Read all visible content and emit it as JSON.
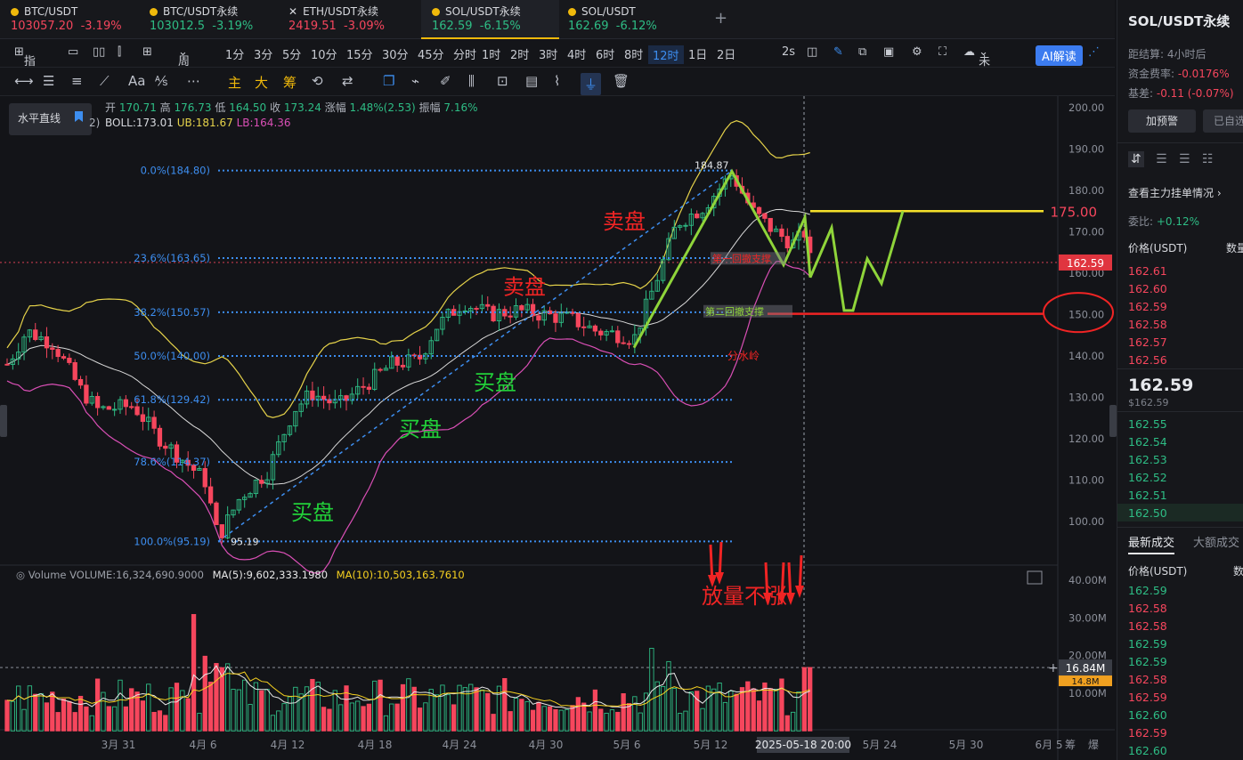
{
  "tabs": [
    {
      "name": "BTC/USDT",
      "price": "103057.20",
      "change": "-3.19%",
      "icon": "bitcoin-icon",
      "dir": "neg"
    },
    {
      "name": "BTC/USDT永续",
      "price": "103012.5",
      "change": "-3.19%",
      "icon": "bitcoin-icon",
      "dir": "pos"
    },
    {
      "name": "ETH/USDT永续",
      "price": "2419.51",
      "change": "-3.09%",
      "icon": "close-icon",
      "dir": "neg"
    },
    {
      "name": "SOL/USDT永续",
      "price": "162.59",
      "change": "-6.15%",
      "icon": "binance-icon",
      "dir": "pos"
    },
    {
      "name": "SOL/USDT",
      "price": "162.69",
      "change": "-6.12%",
      "icon": "sol-icon",
      "dir": "pos"
    }
  ],
  "toolbar": {
    "indicator": "指标",
    "period": "周期",
    "intervals": [
      "1分",
      "3分",
      "5分",
      "10分",
      "15分",
      "30分",
      "45分",
      "分时",
      "1时",
      "2时",
      "3时",
      "4时",
      "6时",
      "8时",
      "12时",
      "1日",
      "2日"
    ],
    "selected": "12时",
    "speed": "2s",
    "layout_name": "未命名",
    "ai": "AI解读"
  },
  "drawtools": {
    "text_tool": "Aa",
    "main": "主",
    "big": "大",
    "chip": "筹"
  },
  "tooltip": {
    "label": "水平直线"
  },
  "ohlc": {
    "open_l": "开",
    "open": "170.71",
    "high_l": "高",
    "high": "176.73",
    "low_l": "低",
    "low": "164.50",
    "close_l": "收",
    "close": "173.24",
    "chg_l": "涨幅",
    "chg": "1.48%(2.53)",
    "amp_l": "振幅",
    "amp": "7.16%"
  },
  "boll": {
    "label": "BOLL:173.01",
    "ub": "UB:181.67",
    "lb": "LB:164.36",
    "prefix": "2)"
  },
  "volume": {
    "label": "Volume",
    "vol": "VOLUME:16,324,690.9000",
    "ma5": "MA(5):9,602,333.1980",
    "ma10": "MA(10):10,503,163.7610"
  },
  "right": {
    "title": "SOL/USDT永续",
    "settle_l": "距结算:",
    "settle": "4小时后",
    "fund_l": "资金费率:",
    "fund": "-0.0176%",
    "basis_l": "基差:",
    "basis": "-0.11 (-0.07%)",
    "alert": "加预警",
    "fav": "已自选",
    "mainorders": "查看主力挂单情况",
    "ratio_l": "委比:",
    "ratio": "+0.12%",
    "price_h": "价格(USDT)",
    "qty_h": "数量",
    "asks": [
      "162.61",
      "162.60",
      "162.59",
      "162.58",
      "162.57",
      "162.56"
    ],
    "last": "162.59",
    "last_sub": "$162.59",
    "bids": [
      "162.55",
      "162.54",
      "162.53",
      "162.52",
      "162.51",
      "162.50"
    ],
    "trades_tab": "最新成交",
    "big_tab": "大额成交",
    "trades_price_h": "价格(USDT)",
    "trades_qty_h": "数",
    "trades": [
      {
        "p": "162.59",
        "c": "pos"
      },
      {
        "p": "162.58",
        "c": "neg"
      },
      {
        "p": "162.58",
        "c": "neg"
      },
      {
        "p": "162.59",
        "c": "pos"
      },
      {
        "p": "162.59",
        "c": "pos"
      },
      {
        "p": "162.58",
        "c": "neg"
      },
      {
        "p": "162.59",
        "c": "neg"
      },
      {
        "p": "162.60",
        "c": "pos"
      },
      {
        "p": "162.59",
        "c": "neg"
      },
      {
        "p": "162.60",
        "c": "pos"
      }
    ]
  },
  "chart_data": {
    "type": "candlestick",
    "price_axis": {
      "min": 95,
      "max": 200,
      "ticks": [
        "200.00",
        "190.00",
        "180.00",
        "170.00",
        "160.00",
        "150.00",
        "140.00",
        "130.00",
        "120.00",
        "110.00",
        "100.00"
      ],
      "current": "162.59",
      "target": "175.00",
      "target_value": 175
    },
    "volume_axis": {
      "ticks": [
        "40.00M",
        "30.00M",
        "20.00M",
        "10.00M"
      ],
      "current": "16.84M",
      "mid": "14.8M"
    },
    "dates": [
      "3月 31",
      "4月 6",
      "4月 12",
      "4月 18",
      "4月 24",
      "4月 30",
      "5月 6",
      "5月 12",
      "5月 24",
      "5月 30",
      "6月 5"
    ],
    "crosshair_date": "2025-05-18 20:00",
    "fib": [
      {
        "label": "0.0%(184.80)",
        "value": 184.8
      },
      {
        "label": "23.6%(163.65)",
        "value": 163.65
      },
      {
        "label": "38.2%(150.57)",
        "value": 150.57
      },
      {
        "label": "50.0%(140.00)",
        "value": 140
      },
      {
        "label": "61.8%(129.42)",
        "value": 129.42
      },
      {
        "label": "78.6%(114.37)",
        "value": 114.37
      },
      {
        "label": "100.0%(95.19)",
        "value": 95.19
      }
    ],
    "peak_label": "184.87",
    "trough_label": "95.19",
    "annotations": {
      "sell1": "卖盘",
      "sell2": "卖盘",
      "buy1": "买盘",
      "buy2": "买盘",
      "buy3": "买盘",
      "support1": "第一回撤支撑",
      "support2": "第二回撤支撑",
      "watershed": "分水岭",
      "vol_note": "放量不涨"
    },
    "corner": [
      "筹",
      "爆"
    ],
    "colors": {
      "up": "#2ebd85",
      "down": "#f6465d",
      "ub": "#e6d34a",
      "lb": "#d94fb5",
      "mid": "#d9d9d9",
      "fib": "#3d8ef0",
      "target": "#f5e02a",
      "support": "#f02424",
      "path": "#8fd43a"
    }
  }
}
